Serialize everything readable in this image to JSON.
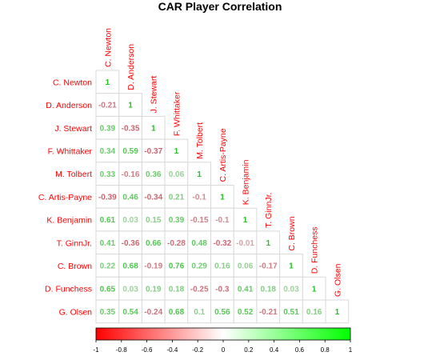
{
  "chart_data": {
    "type": "heatmap",
    "title": "CAR Player Correlation",
    "variables": [
      "C. Newton",
      "D. Anderson",
      "J. Stewart",
      "F. Whittaker",
      "M. Tolbert",
      "C. Artis-Payne",
      "K. Benjamin",
      "T. GinnJr.",
      "C. Brown",
      "D. Funchess",
      "G. Olsen"
    ],
    "matrix_lower": [
      [
        "1"
      ],
      [
        "-0.21",
        "1"
      ],
      [
        "0.39",
        "-0.35",
        "1"
      ],
      [
        "0.34",
        "0.59",
        "-0.37",
        "1"
      ],
      [
        "0.33",
        "-0.16",
        "0.36",
        "0.06",
        "1"
      ],
      [
        "-0.39",
        "0.46",
        "-0.34",
        "0.21",
        "-0.1",
        "1"
      ],
      [
        "0.61",
        "0.03",
        "0.15",
        "0.39",
        "-0.15",
        "-0.1",
        "1"
      ],
      [
        "0.41",
        "-0.36",
        "0.66",
        "-0.28",
        "0.48",
        "-0.32",
        "-0.01",
        "1"
      ],
      [
        "0.22",
        "0.68",
        "-0.19",
        "0.76",
        "0.29",
        "0.16",
        "0.06",
        "-0.17",
        "1"
      ],
      [
        "0.65",
        "0.03",
        "0.19",
        "0.18",
        "-0.25",
        "-0.3",
        "0.41",
        "0.18",
        "0.03",
        "1"
      ],
      [
        "0.35",
        "0.54",
        "-0.24",
        "0.68",
        "0.1",
        "0.56",
        "0.52",
        "-0.21",
        "0.51",
        "0.16",
        "1"
      ]
    ],
    "colorbar": {
      "ticks": [
        "-1",
        "-0.8",
        "-0.6",
        "-0.4",
        "-0.2",
        "0",
        "0.2",
        "0.4",
        "0.6",
        "0.8",
        "1"
      ],
      "range": [
        -1,
        1
      ],
      "colors": {
        "low": "#ff0000",
        "mid": "#ffffff",
        "high": "#00ff00"
      }
    },
    "label_color": "#ff0000",
    "grid": true,
    "legend_position": "bottom"
  }
}
